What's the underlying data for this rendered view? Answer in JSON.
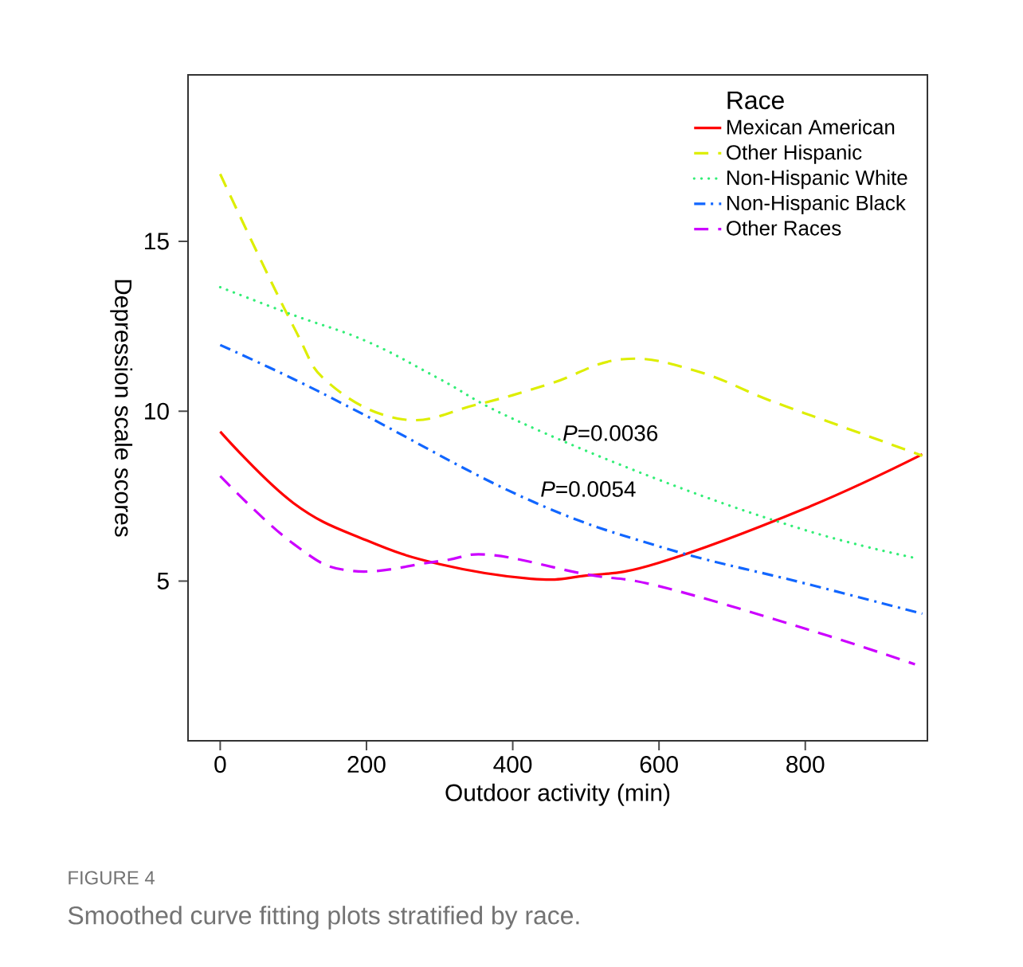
{
  "chart_data": {
    "type": "line",
    "xlabel": "Outdoor activity (min)",
    "ylabel": "Depression scale scores",
    "legend_title": "Race",
    "legend": "top right",
    "xlim": [
      -44,
      967
    ],
    "ylim": [
      0.3,
      19.9
    ],
    "xticks": [
      0,
      200,
      400,
      600,
      800
    ],
    "yticks": [
      5,
      10,
      15
    ],
    "series": [
      {
        "name": "Mexican American",
        "color": "#ff0000",
        "line_style": "solid",
        "x": [
          0,
          100,
          200,
          300,
          425,
          500,
          600,
          800,
          960
        ],
        "values": [
          9.4,
          7.3,
          6.2,
          5.5,
          5.07,
          5.16,
          5.54,
          7.14,
          8.73
        ]
      },
      {
        "name": "Other Hispanic",
        "color": "#ddee00",
        "line_style": "dashed",
        "x": [
          0,
          100,
          150,
          250,
          350,
          450,
          550,
          650,
          750,
          850,
          960
        ],
        "values": [
          16.98,
          12.5,
          10.8,
          9.76,
          10.19,
          10.8,
          11.53,
          11.19,
          10.33,
          9.55,
          8.69
        ]
      },
      {
        "name": "Non-Hispanic White",
        "color": "#33ee77",
        "line_style": "dotted",
        "x": [
          0,
          100,
          200,
          300,
          400,
          600,
          800,
          950
        ],
        "values": [
          13.65,
          12.83,
          12.06,
          10.95,
          9.78,
          7.98,
          6.5,
          5.68
        ]
      },
      {
        "name": "Non-Hispanic Black",
        "color": "#1166ff",
        "line_style": "dashdot",
        "x": [
          0,
          100,
          200,
          418,
          600,
          800,
          960
        ],
        "values": [
          11.95,
          10.95,
          9.86,
          7.43,
          6.02,
          4.93,
          4.04
        ]
      },
      {
        "name": "Other Races",
        "color": "#cc00ff",
        "line_style": "dashed",
        "x": [
          0,
          100,
          180,
          300,
          370,
          500,
          600,
          800,
          950
        ],
        "values": [
          8.09,
          6.1,
          5.3,
          5.59,
          5.77,
          5.2,
          4.85,
          3.6,
          2.55
        ]
      }
    ],
    "annotations": [
      "*P*=0.0036",
      "*P*=0.0054",
      "FIGURE 4",
      "Smoothed curve fitting plots stratified by race."
    ]
  }
}
